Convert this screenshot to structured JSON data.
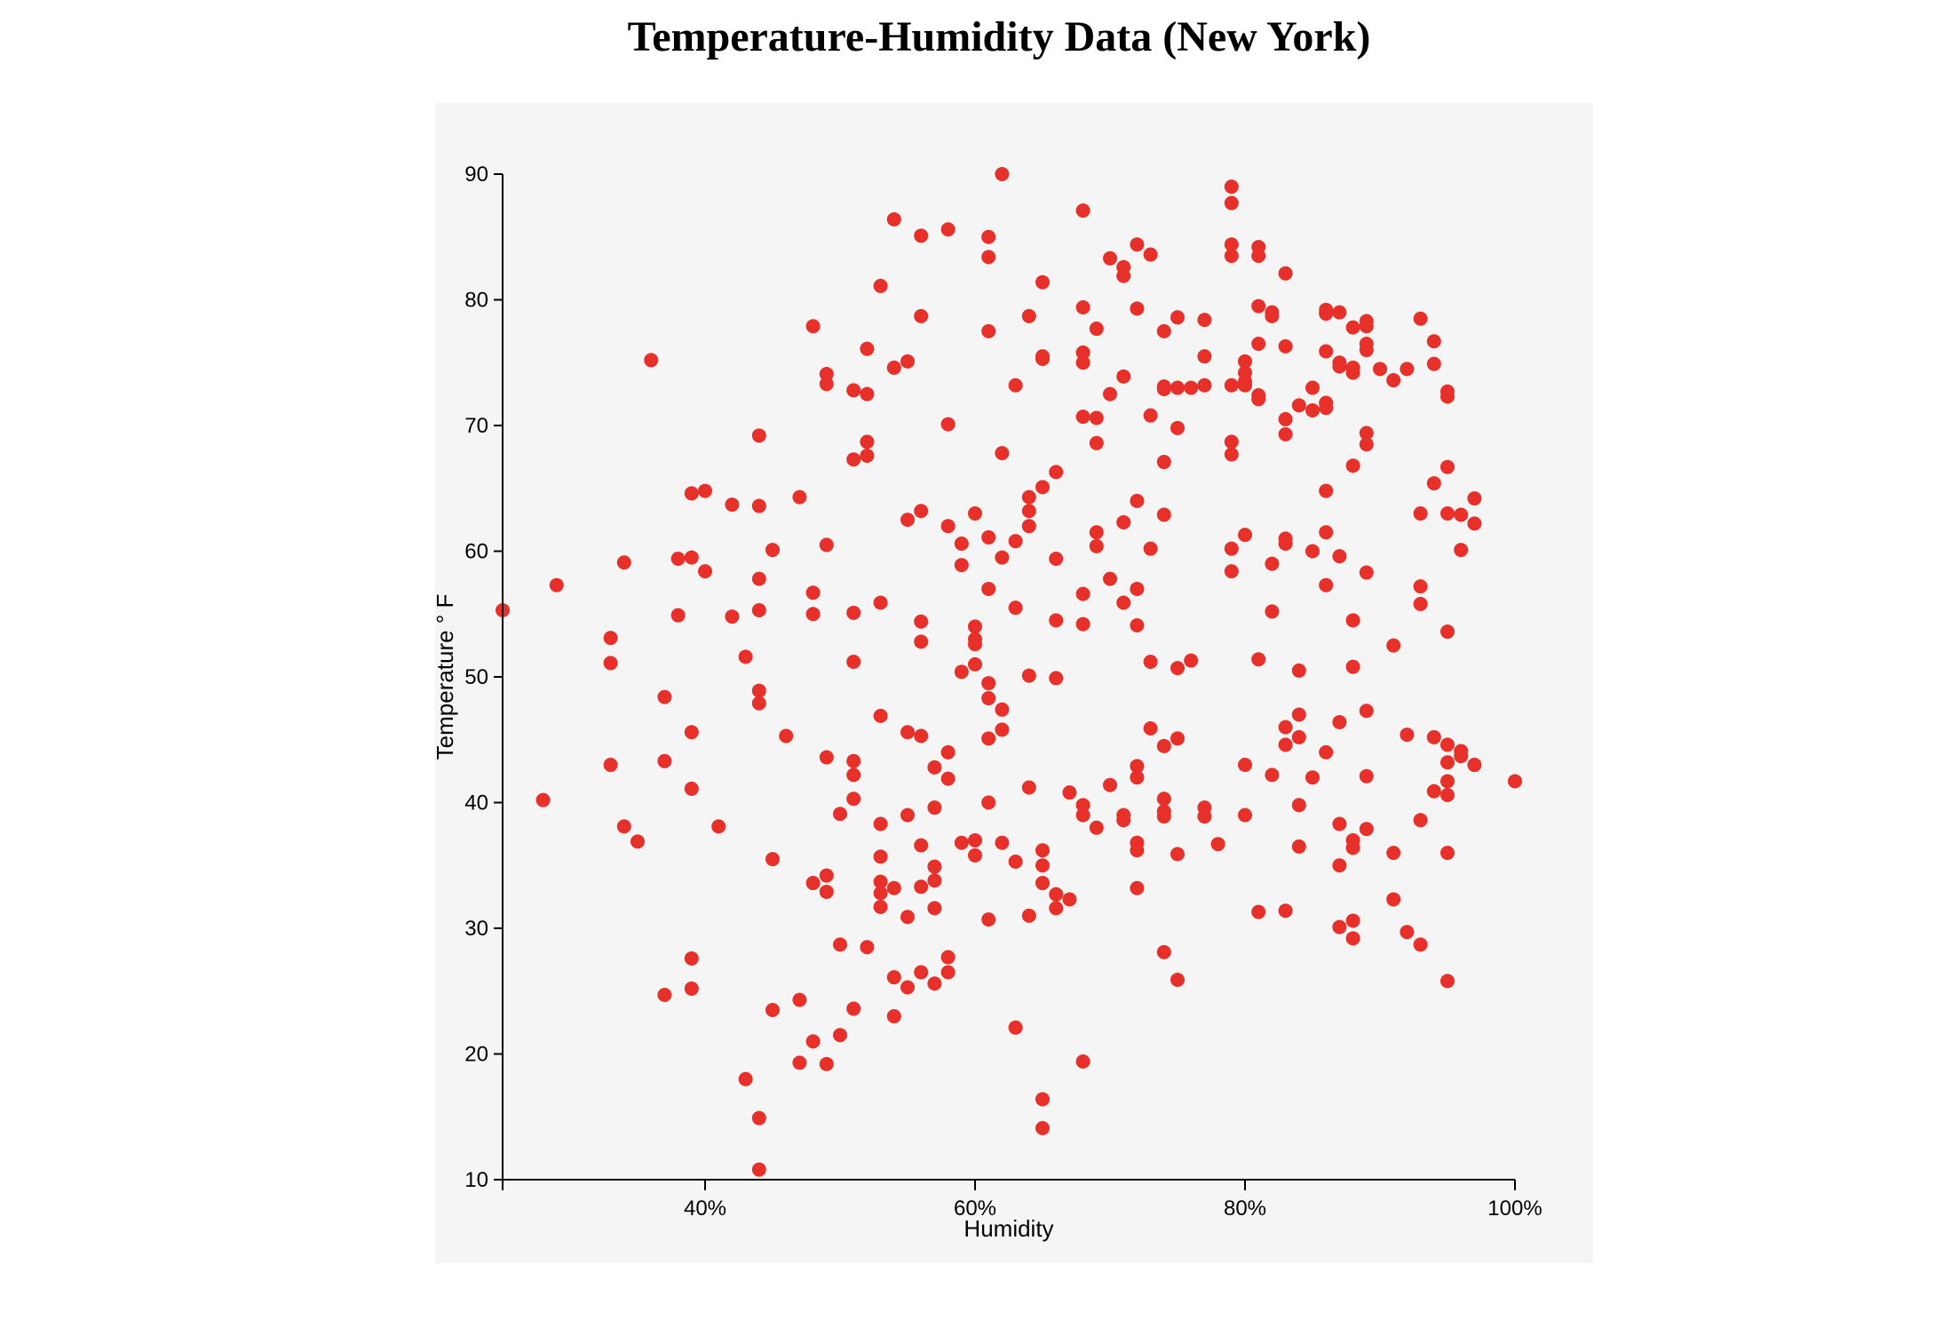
{
  "chart_data": {
    "type": "scatter",
    "title": "Temperature-Humidity Data (New York)",
    "xlabel": "Humidity",
    "ylabel": "Temperature ° F",
    "xlim": [
      25,
      100
    ],
    "ylim": [
      10,
      90
    ],
    "x_ticks": [
      40,
      60,
      80,
      100
    ],
    "x_tick_labels": [
      "40%",
      "60%",
      "80%",
      "100%"
    ],
    "y_ticks": [
      10,
      20,
      30,
      40,
      50,
      60,
      70,
      80,
      90
    ],
    "y_tick_labels": [
      "10",
      "20",
      "30",
      "40",
      "50",
      "60",
      "70",
      "80",
      "90"
    ],
    "grid": false,
    "legend": "none",
    "colors": {
      "point": "#e8302a",
      "panel_bg": "#f5f5f5",
      "axis": "#000000"
    },
    "points": [
      [
        25,
        55.3
      ],
      [
        28,
        40.2
      ],
      [
        29,
        57.3
      ],
      [
        33,
        53.1
      ],
      [
        33,
        51.1
      ],
      [
        33,
        43
      ],
      [
        34,
        59.1
      ],
      [
        34,
        38.1
      ],
      [
        35,
        36.9
      ],
      [
        36,
        75.2
      ],
      [
        37,
        48.4
      ],
      [
        37,
        43.3
      ],
      [
        37,
        24.7
      ],
      [
        38,
        59.4
      ],
      [
        38,
        54.9
      ],
      [
        39,
        64.6
      ],
      [
        39,
        59.5
      ],
      [
        39,
        45.6
      ],
      [
        39,
        41.1
      ],
      [
        39,
        27.6
      ],
      [
        39,
        25.2
      ],
      [
        40,
        64.8
      ],
      [
        40,
        58.4
      ],
      [
        41,
        38.1
      ],
      [
        42,
        63.7
      ],
      [
        42,
        54.8
      ],
      [
        43,
        51.6
      ],
      [
        43,
        18
      ],
      [
        44,
        69.2
      ],
      [
        44,
        63.6
      ],
      [
        44,
        57.8
      ],
      [
        44,
        55.3
      ],
      [
        44,
        48.9
      ],
      [
        44,
        47.9
      ],
      [
        44,
        14.9
      ],
      [
        44,
        10.8
      ],
      [
        45,
        60.1
      ],
      [
        45,
        35.5
      ],
      [
        45,
        23.5
      ],
      [
        46,
        45.3
      ],
      [
        47,
        64.3
      ],
      [
        47,
        24.3
      ],
      [
        47,
        19.3
      ],
      [
        48,
        77.9
      ],
      [
        48,
        56.7
      ],
      [
        48,
        55
      ],
      [
        48,
        33.6
      ],
      [
        48,
        21
      ],
      [
        49,
        74.1
      ],
      [
        49,
        73.3
      ],
      [
        49,
        60.5
      ],
      [
        49,
        43.6
      ],
      [
        49,
        34.2
      ],
      [
        49,
        32.9
      ],
      [
        49,
        19.2
      ],
      [
        50,
        39.1
      ],
      [
        50,
        28.7
      ],
      [
        50,
        21.5
      ],
      [
        51,
        72.8
      ],
      [
        51,
        67.3
      ],
      [
        51,
        55.1
      ],
      [
        51,
        51.2
      ],
      [
        51,
        43.3
      ],
      [
        51,
        42.2
      ],
      [
        51,
        40.3
      ],
      [
        51,
        23.6
      ],
      [
        52,
        76.1
      ],
      [
        52,
        72.5
      ],
      [
        52,
        68.7
      ],
      [
        52,
        67.6
      ],
      [
        52,
        28.5
      ],
      [
        53,
        81.1
      ],
      [
        53,
        55.9
      ],
      [
        53,
        46.9
      ],
      [
        53,
        38.3
      ],
      [
        53,
        35.7
      ],
      [
        53,
        33.7
      ],
      [
        53,
        32.8
      ],
      [
        53,
        31.7
      ],
      [
        54,
        86.4
      ],
      [
        54,
        74.6
      ],
      [
        54,
        33.2
      ],
      [
        54,
        26.1
      ],
      [
        54,
        23
      ],
      [
        55,
        75.1
      ],
      [
        55,
        62.5
      ],
      [
        55,
        45.6
      ],
      [
        55,
        39
      ],
      [
        55,
        30.9
      ],
      [
        55,
        25.3
      ],
      [
        56,
        85.1
      ],
      [
        56,
        78.7
      ],
      [
        56,
        63.2
      ],
      [
        56,
        54.4
      ],
      [
        56,
        52.8
      ],
      [
        56,
        45.3
      ],
      [
        56,
        36.6
      ],
      [
        56,
        33.3
      ],
      [
        56,
        26.5
      ],
      [
        57,
        42.8
      ],
      [
        57,
        39.6
      ],
      [
        57,
        34.9
      ],
      [
        57,
        33.8
      ],
      [
        57,
        31.6
      ],
      [
        57,
        25.6
      ],
      [
        58,
        85.6
      ],
      [
        58,
        70.1
      ],
      [
        58,
        62
      ],
      [
        58,
        44
      ],
      [
        58,
        41.9
      ],
      [
        58,
        27.7
      ],
      [
        58,
        26.5
      ],
      [
        59,
        60.6
      ],
      [
        59,
        58.9
      ],
      [
        59,
        50.4
      ],
      [
        59,
        36.8
      ],
      [
        60,
        63
      ],
      [
        60,
        54
      ],
      [
        60,
        53
      ],
      [
        60,
        52.6
      ],
      [
        60,
        51
      ],
      [
        60,
        37
      ],
      [
        60,
        35.8
      ],
      [
        61,
        85
      ],
      [
        61,
        83.4
      ],
      [
        61,
        77.5
      ],
      [
        61,
        61.1
      ],
      [
        61,
        57
      ],
      [
        61,
        49.5
      ],
      [
        61,
        48.3
      ],
      [
        61,
        45.1
      ],
      [
        61,
        40
      ],
      [
        61,
        30.7
      ],
      [
        62,
        90
      ],
      [
        62,
        67.8
      ],
      [
        62,
        59.5
      ],
      [
        62,
        47.4
      ],
      [
        62,
        45.8
      ],
      [
        62,
        36.8
      ],
      [
        63,
        73.2
      ],
      [
        63,
        60.8
      ],
      [
        63,
        55.5
      ],
      [
        63,
        35.3
      ],
      [
        63,
        22.1
      ],
      [
        64,
        78.7
      ],
      [
        64,
        64.3
      ],
      [
        64,
        63.2
      ],
      [
        64,
        62
      ],
      [
        64,
        50.1
      ],
      [
        64,
        41.2
      ],
      [
        64,
        31
      ],
      [
        65,
        81.4
      ],
      [
        65,
        75.5
      ],
      [
        65,
        75.3
      ],
      [
        65,
        65.1
      ],
      [
        65,
        36.2
      ],
      [
        65,
        35
      ],
      [
        65,
        33.6
      ],
      [
        65,
        16.4
      ],
      [
        65,
        14.1
      ],
      [
        66,
        66.3
      ],
      [
        66,
        59.4
      ],
      [
        66,
        54.5
      ],
      [
        66,
        49.9
      ],
      [
        66,
        32.7
      ],
      [
        66,
        31.6
      ],
      [
        67,
        40.8
      ],
      [
        67,
        32.3
      ],
      [
        68,
        87.1
      ],
      [
        68,
        79.4
      ],
      [
        68,
        75.8
      ],
      [
        68,
        75
      ],
      [
        68,
        70.7
      ],
      [
        68,
        56.6
      ],
      [
        68,
        54.2
      ],
      [
        68,
        39.8
      ],
      [
        68,
        39
      ],
      [
        68,
        19.4
      ],
      [
        69,
        77.7
      ],
      [
        69,
        70.6
      ],
      [
        69,
        68.6
      ],
      [
        69,
        61.5
      ],
      [
        69,
        60.4
      ],
      [
        69,
        38
      ],
      [
        70,
        83.3
      ],
      [
        70,
        72.5
      ],
      [
        70,
        57.8
      ],
      [
        70,
        41.4
      ],
      [
        71,
        82.6
      ],
      [
        71,
        81.9
      ],
      [
        71,
        73.9
      ],
      [
        71,
        62.3
      ],
      [
        71,
        55.9
      ],
      [
        71,
        39
      ],
      [
        71,
        38.6
      ],
      [
        72,
        84.4
      ],
      [
        72,
        79.3
      ],
      [
        72,
        64
      ],
      [
        72,
        57
      ],
      [
        72,
        54.1
      ],
      [
        72,
        42.9
      ],
      [
        72,
        42
      ],
      [
        72,
        36.8
      ],
      [
        72,
        36.2
      ],
      [
        72,
        33.2
      ],
      [
        73,
        83.6
      ],
      [
        73,
        70.8
      ],
      [
        73,
        60.2
      ],
      [
        73,
        51.2
      ],
      [
        73,
        45.9
      ],
      [
        74,
        77.5
      ],
      [
        74,
        73.1
      ],
      [
        74,
        72.9
      ],
      [
        74,
        67.1
      ],
      [
        74,
        62.9
      ],
      [
        74,
        44.5
      ],
      [
        74,
        40.3
      ],
      [
        74,
        39.3
      ],
      [
        74,
        38.9
      ],
      [
        74,
        28.1
      ],
      [
        75,
        78.6
      ],
      [
        75,
        73
      ],
      [
        75,
        69.8
      ],
      [
        75,
        50.7
      ],
      [
        75,
        45.1
      ],
      [
        75,
        35.9
      ],
      [
        75,
        25.9
      ],
      [
        76,
        73
      ],
      [
        76,
        51.3
      ],
      [
        77,
        78.4
      ],
      [
        77,
        75.5
      ],
      [
        77,
        73.2
      ],
      [
        77,
        39.6
      ],
      [
        77,
        38.9
      ],
      [
        78,
        36.7
      ],
      [
        79,
        89
      ],
      [
        79,
        87.7
      ],
      [
        79,
        84.4
      ],
      [
        79,
        83.5
      ],
      [
        79,
        73.2
      ],
      [
        79,
        68.7
      ],
      [
        79,
        67.7
      ],
      [
        79,
        60.2
      ],
      [
        79,
        58.4
      ],
      [
        80,
        75.1
      ],
      [
        80,
        74.2
      ],
      [
        80,
        73.5
      ],
      [
        80,
        73.2
      ],
      [
        80,
        61.3
      ],
      [
        80,
        43
      ],
      [
        80,
        39
      ],
      [
        81,
        84.2
      ],
      [
        81,
        83.5
      ],
      [
        81,
        79.5
      ],
      [
        81,
        76.5
      ],
      [
        81,
        72.4
      ],
      [
        81,
        72.1
      ],
      [
        81,
        51.4
      ],
      [
        81,
        31.3
      ],
      [
        82,
        79
      ],
      [
        82,
        78.7
      ],
      [
        82,
        59
      ],
      [
        82,
        55.2
      ],
      [
        82,
        42.2
      ],
      [
        83,
        82.1
      ],
      [
        83,
        76.3
      ],
      [
        83,
        70.5
      ],
      [
        83,
        69.3
      ],
      [
        83,
        61
      ],
      [
        83,
        60.6
      ],
      [
        83,
        46
      ],
      [
        83,
        44.6
      ],
      [
        83,
        31.4
      ],
      [
        84,
        71.6
      ],
      [
        84,
        50.5
      ],
      [
        84,
        47
      ],
      [
        84,
        45.2
      ],
      [
        84,
        39.8
      ],
      [
        84,
        36.5
      ],
      [
        85,
        73
      ],
      [
        85,
        71.2
      ],
      [
        85,
        60
      ],
      [
        85,
        42
      ],
      [
        86,
        79.2
      ],
      [
        86,
        78.9
      ],
      [
        86,
        75.9
      ],
      [
        86,
        71.8
      ],
      [
        86,
        71.4
      ],
      [
        86,
        64.8
      ],
      [
        86,
        61.5
      ],
      [
        86,
        57.3
      ],
      [
        86,
        44
      ],
      [
        87,
        79
      ],
      [
        87,
        75
      ],
      [
        87,
        74.7
      ],
      [
        87,
        59.6
      ],
      [
        87,
        46.4
      ],
      [
        87,
        38.3
      ],
      [
        87,
        35
      ],
      [
        87,
        30.1
      ],
      [
        88,
        77.8
      ],
      [
        88,
        74.6
      ],
      [
        88,
        74.2
      ],
      [
        88,
        66.8
      ],
      [
        88,
        54.5
      ],
      [
        88,
        50.8
      ],
      [
        88,
        37
      ],
      [
        88,
        36.4
      ],
      [
        88,
        30.6
      ],
      [
        88,
        29.2
      ],
      [
        89,
        78.3
      ],
      [
        89,
        77.9
      ],
      [
        89,
        76.5
      ],
      [
        89,
        76
      ],
      [
        89,
        69.4
      ],
      [
        89,
        68.5
      ],
      [
        89,
        58.3
      ],
      [
        89,
        47.3
      ],
      [
        89,
        42.1
      ],
      [
        89,
        37.9
      ],
      [
        90,
        74.5
      ],
      [
        91,
        73.6
      ],
      [
        91,
        52.5
      ],
      [
        91,
        36
      ],
      [
        91,
        32.3
      ],
      [
        92,
        74.5
      ],
      [
        92,
        45.4
      ],
      [
        92,
        29.7
      ],
      [
        93,
        78.5
      ],
      [
        93,
        63
      ],
      [
        93,
        57.2
      ],
      [
        93,
        55.8
      ],
      [
        93,
        38.6
      ],
      [
        93,
        28.7
      ],
      [
        94,
        76.7
      ],
      [
        94,
        74.9
      ],
      [
        94,
        65.4
      ],
      [
        94,
        45.2
      ],
      [
        94,
        40.9
      ],
      [
        95,
        72.7
      ],
      [
        95,
        72.3
      ],
      [
        95,
        66.7
      ],
      [
        95,
        63
      ],
      [
        95,
        53.6
      ],
      [
        95,
        44.6
      ],
      [
        95,
        43.2
      ],
      [
        95,
        41.7
      ],
      [
        95,
        40.6
      ],
      [
        95,
        36
      ],
      [
        95,
        25.8
      ],
      [
        96,
        62.9
      ],
      [
        96,
        60.1
      ],
      [
        96,
        44.1
      ],
      [
        96,
        43.7
      ],
      [
        97,
        64.2
      ],
      [
        97,
        62.2
      ],
      [
        97,
        43
      ],
      [
        100,
        41.7
      ]
    ]
  }
}
